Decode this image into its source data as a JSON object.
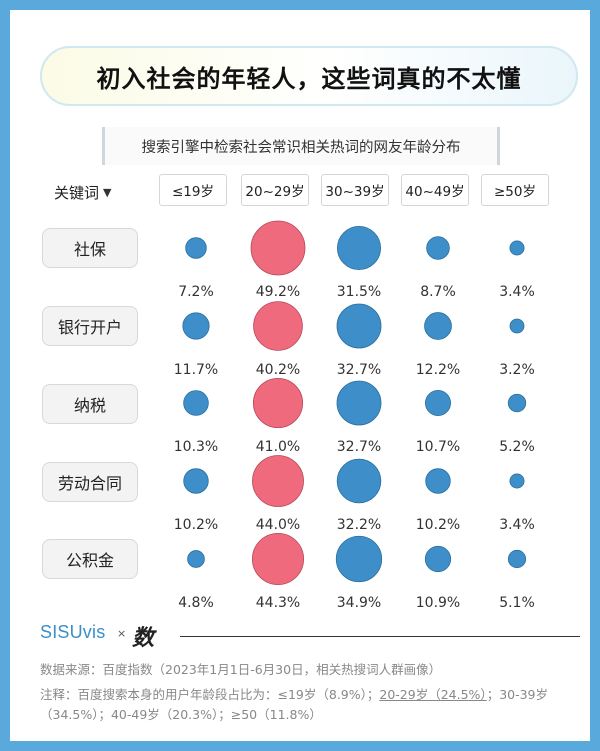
{
  "title": "初入社会的年轻人，这些词真的不太懂",
  "subtitle": "搜索引擎中检索社会常识相关热词的网友年龄分布",
  "keyword_header": "关键词",
  "age_groups": [
    "≤19岁",
    "20~29岁",
    "30~39岁",
    "40~49岁",
    "≥50岁"
  ],
  "colors": {
    "highlight": "#f06a7e",
    "normal": "#3e8fc9",
    "background": "#5aa9dc"
  },
  "chart_data": {
    "type": "bubble-matrix",
    "title": "搜索引擎中检索社会常识相关热词的网友年龄分布",
    "categories": [
      "≤19岁",
      "20~29岁",
      "30~39岁",
      "40~49岁",
      "≥50岁"
    ],
    "highlight_category": "20~29岁",
    "unit": "%",
    "rows": [
      {
        "keyword": "社保",
        "values": [
          7.2,
          49.2,
          31.5,
          8.7,
          3.4
        ],
        "labels": [
          "7.2%",
          "49.2%",
          "31.5%",
          "8.7%",
          "3.4%"
        ]
      },
      {
        "keyword": "银行开户",
        "values": [
          11.7,
          40.2,
          32.7,
          12.2,
          3.2
        ],
        "labels": [
          "11.7%",
          "40.2%",
          "32.7%",
          "12.2%",
          "3.2%"
        ]
      },
      {
        "keyword": "纳税",
        "values": [
          10.3,
          41.0,
          32.7,
          10.7,
          5.2
        ],
        "labels": [
          "10.3%",
          "41.0%",
          "32.7%",
          "10.7%",
          "5.2%"
        ]
      },
      {
        "keyword": "劳动合同",
        "values": [
          10.2,
          44.0,
          32.2,
          10.2,
          3.4
        ],
        "labels": [
          "10.2%",
          "44.0%",
          "32.2%",
          "10.2%",
          "3.4%"
        ]
      },
      {
        "keyword": "公积金",
        "values": [
          4.8,
          44.3,
          34.9,
          10.9,
          5.1
        ],
        "labels": [
          "4.8%",
          "44.3%",
          "34.9%",
          "10.9%",
          "5.1%"
        ]
      }
    ]
  },
  "brand": {
    "name": "SISUvis",
    "separator": "×",
    "partner": "数"
  },
  "source_text": "数据来源：百度指数（2023年1月1日-6月30日，相关热搜词人群画像）",
  "note_prefix": "注释：百度搜索本身的用户年龄段占比为：≤19岁（8.9%）；",
  "note_highlight": "20-29岁（24.5%）",
  "note_suffix": "；30-39岁（34.5%）；40-49岁（20.3%）；≥50（11.8%）"
}
